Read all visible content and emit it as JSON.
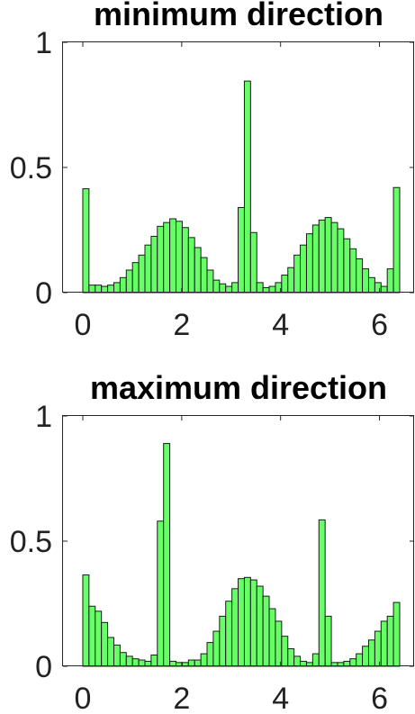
{
  "chart_data": [
    {
      "type": "bar",
      "title": "minimum direction",
      "xlabel": "",
      "ylabel": "",
      "xlim": [
        -0.4,
        6.7
      ],
      "ylim": [
        0,
        1
      ],
      "xticks": [
        0,
        2,
        4,
        6
      ],
      "xtick_labels": [
        "0",
        "2",
        "4",
        "6"
      ],
      "yticks": [
        0,
        0.5,
        1
      ],
      "ytick_labels": [
        "0",
        "0.5",
        "1"
      ],
      "bar_color": "#66ff66",
      "bin_start": 0,
      "bin_width": 0.12566,
      "values": [
        0.415,
        0.03,
        0.03,
        0.025,
        0.03,
        0.04,
        0.06,
        0.09,
        0.12,
        0.15,
        0.19,
        0.225,
        0.265,
        0.28,
        0.295,
        0.285,
        0.26,
        0.22,
        0.18,
        0.14,
        0.09,
        0.05,
        0.035,
        0.025,
        0.04,
        0.34,
        0.845,
        0.24,
        0.04,
        0.02,
        0.025,
        0.04,
        0.07,
        0.1,
        0.15,
        0.19,
        0.235,
        0.27,
        0.29,
        0.3,
        0.28,
        0.255,
        0.215,
        0.175,
        0.135,
        0.095,
        0.06,
        0.04,
        0.025,
        0.095,
        0.42
      ]
    },
    {
      "type": "bar",
      "title": "maximum direction",
      "xlabel": "",
      "ylabel": "",
      "xlim": [
        -0.4,
        6.7
      ],
      "ylim": [
        0,
        1
      ],
      "xticks": [
        0,
        2,
        4,
        6
      ],
      "xtick_labels": [
        "0",
        "2",
        "4",
        "6"
      ],
      "yticks": [
        0,
        0.5,
        1
      ],
      "ytick_labels": [
        "0",
        "0.5",
        "1"
      ],
      "bar_color": "#66ff66",
      "bin_start": 0,
      "bin_width": 0.12566,
      "values": [
        0.365,
        0.24,
        0.22,
        0.175,
        0.115,
        0.085,
        0.055,
        0.04,
        0.03,
        0.025,
        0.02,
        0.045,
        0.58,
        0.89,
        0.02,
        0.015,
        0.015,
        0.025,
        0.025,
        0.05,
        0.095,
        0.14,
        0.2,
        0.26,
        0.31,
        0.35,
        0.355,
        0.345,
        0.32,
        0.28,
        0.23,
        0.18,
        0.12,
        0.07,
        0.04,
        0.02,
        0.015,
        0.05,
        0.585,
        0.2,
        0.015,
        0.015,
        0.02,
        0.03,
        0.05,
        0.08,
        0.105,
        0.14,
        0.18,
        0.2,
        0.255
      ]
    }
  ]
}
